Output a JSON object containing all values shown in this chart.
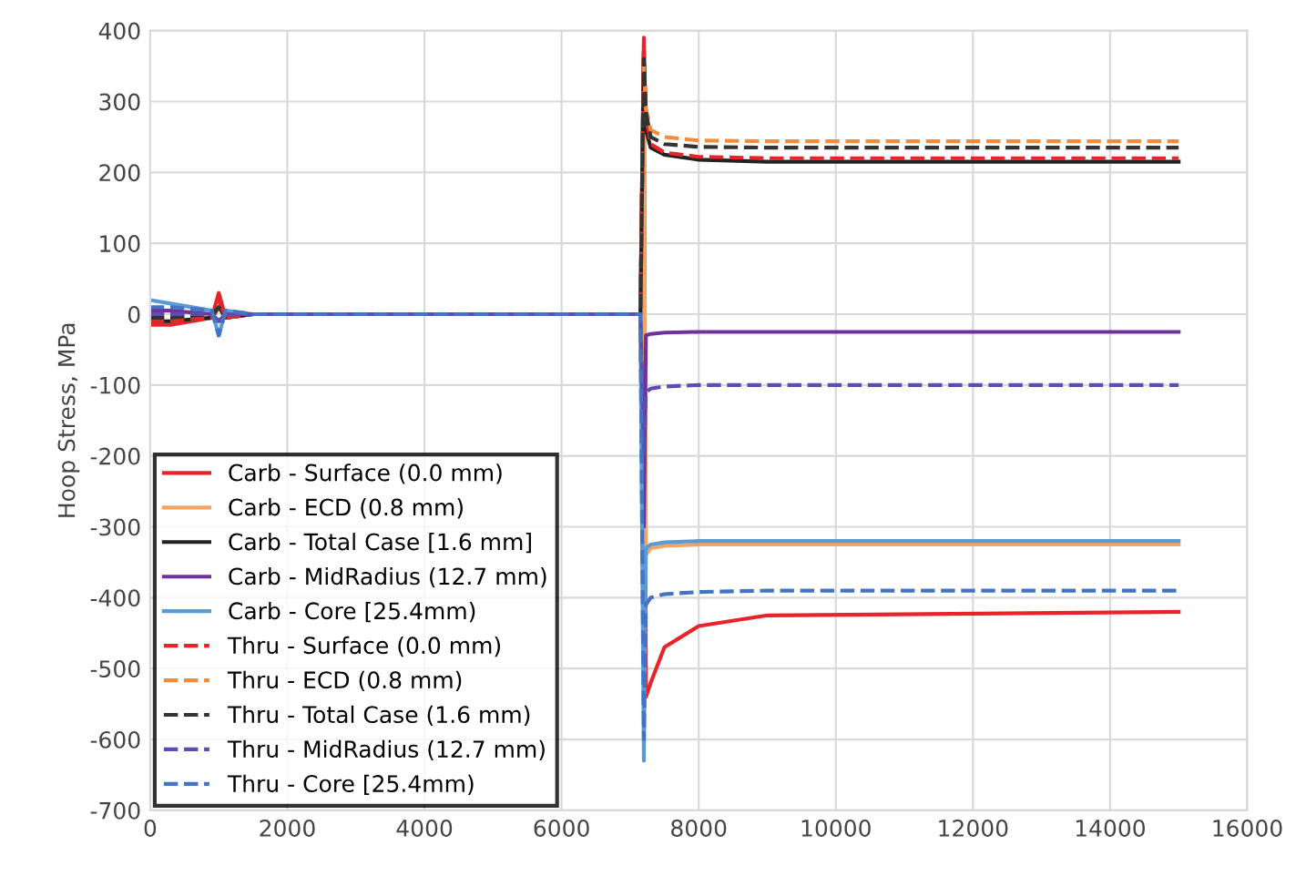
{
  "chart_data": {
    "type": "line",
    "ylabel": "Hoop Stress, MPa",
    "x": [
      0,
      300,
      900,
      1000,
      1100,
      1500,
      7150,
      7200,
      7230,
      7300,
      7500,
      8000,
      9000,
      15000
    ],
    "xlim": [
      0,
      16000
    ],
    "xticks": [
      0,
      2000,
      4000,
      6000,
      8000,
      10000,
      12000,
      14000,
      16000
    ],
    "ylim": [
      -700,
      400
    ],
    "yticks": [
      -700,
      -600,
      -500,
      -400,
      -300,
      -200,
      -100,
      0,
      100,
      200,
      300,
      400
    ],
    "grid": true,
    "legend": "bottom left",
    "marker": "none",
    "series": [
      {
        "name": "Carb - Surface (0.0 mm)",
        "color": "#e8242a",
        "line_style": "solid",
        "values": [
          -15,
          -15,
          -5,
          30,
          -5,
          0,
          0,
          390,
          -540,
          -520,
          -470,
          -440,
          -425,
          -420
        ]
      },
      {
        "name": "Carb - ECD (0.8 mm)",
        "color": "#f4a460",
        "line_style": "solid",
        "values": [
          -10,
          -10,
          -5,
          10,
          -5,
          0,
          0,
          300,
          -340,
          -330,
          -327,
          -325,
          -325,
          -325
        ]
      },
      {
        "name": "Carb - Total Case [1.6 mm]",
        "color": "#222222",
        "line_style": "solid",
        "values": [
          -10,
          -10,
          -5,
          10,
          -5,
          0,
          0,
          370,
          260,
          235,
          225,
          218,
          215,
          215
        ]
      },
      {
        "name": "Carb - MidRadius (12.7 mm)",
        "color": "#7030a0",
        "line_style": "solid",
        "values": [
          5,
          5,
          0,
          -10,
          0,
          0,
          0,
          -300,
          -30,
          -28,
          -26,
          -25,
          -25,
          -25
        ]
      },
      {
        "name": "Carb - Core [25.4mm)",
        "color": "#5b9bd5",
        "line_style": "solid",
        "values": [
          20,
          15,
          5,
          -30,
          5,
          0,
          0,
          -630,
          -330,
          -325,
          -322,
          -320,
          -320,
          -320
        ]
      },
      {
        "name": "Thru - Surface (0.0 mm)",
        "color": "#e8242a",
        "line_style": "dashed",
        "values": [
          -10,
          -10,
          -5,
          20,
          -5,
          0,
          0,
          380,
          280,
          240,
          228,
          222,
          220,
          220
        ]
      },
      {
        "name": "Thru - ECD (0.8 mm)",
        "color": "#f08c3c",
        "line_style": "dashed",
        "values": [
          -5,
          -5,
          0,
          10,
          0,
          0,
          0,
          350,
          290,
          260,
          250,
          245,
          244,
          244
        ]
      },
      {
        "name": "Thru - Total Case (1.6 mm)",
        "color": "#333333",
        "line_style": "dashed",
        "values": [
          -5,
          -5,
          0,
          10,
          0,
          0,
          0,
          360,
          285,
          250,
          240,
          236,
          235,
          235
        ]
      },
      {
        "name": "Thru - MidRadius (12.7 mm)",
        "color": "#5a4fb0",
        "line_style": "dashed",
        "values": [
          0,
          0,
          0,
          -10,
          0,
          0,
          0,
          -200,
          -110,
          -105,
          -102,
          -100,
          -100,
          -100
        ]
      },
      {
        "name": "Thru - Core [25.4mm)",
        "color": "#4472c4",
        "line_style": "dashed",
        "values": [
          10,
          10,
          5,
          -30,
          5,
          0,
          0,
          -600,
          -410,
          -400,
          -395,
          -392,
          -390,
          -390
        ]
      }
    ]
  }
}
